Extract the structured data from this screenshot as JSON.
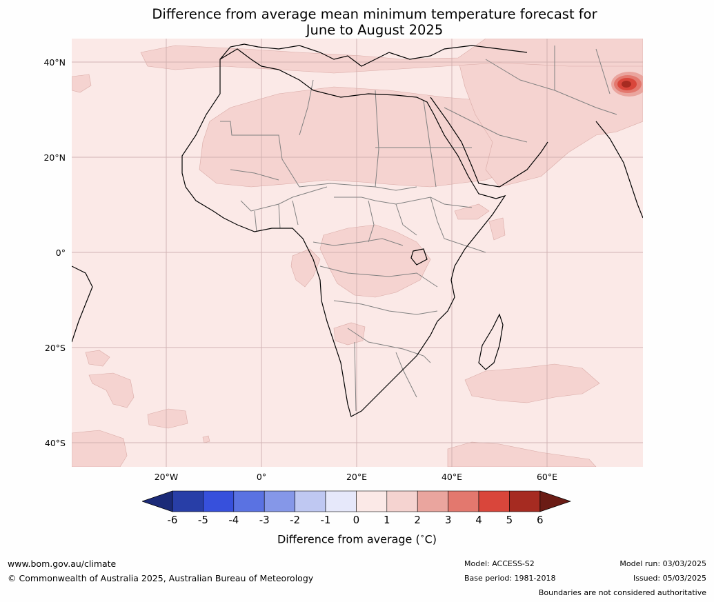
{
  "title": {
    "line1": "Difference from average mean minimum temperature forecast for",
    "line2": "June to August 2025"
  },
  "map": {
    "region": "Africa",
    "lat_labels": [
      "40°N",
      "20°N",
      "0°",
      "20°S",
      "40°S"
    ],
    "lon_labels": [
      "20°W",
      "0°",
      "20°E",
      "40°E",
      "60°E"
    ],
    "background_class": "0 to 1",
    "ocean_color": "#fbe9e7",
    "anomaly_1_2_color": "#f5d3d0",
    "hotspot_colors": [
      "#eaa59e",
      "#e3786e",
      "#d9463b",
      "#a62b21"
    ],
    "land_border_color": "#808080",
    "coastline_color": "#000000",
    "gridline_color": "#c9a8a8"
  },
  "colorbar": {
    "ticks": [
      "-6",
      "-5",
      "-4",
      "-3",
      "-2",
      "-1",
      "0",
      "1",
      "2",
      "3",
      "4",
      "5",
      "6"
    ],
    "colors": [
      "#1b2a78",
      "#283ea7",
      "#3750dc",
      "#5a72e2",
      "#8597e8",
      "#bfc8f2",
      "#e6e8fa",
      "#fbe9e7",
      "#f5d3d0",
      "#eaa59e",
      "#e3786e",
      "#d9463b",
      "#a62b21",
      "#6b1c15"
    ],
    "label": "Difference from average (",
    "label_unit": "∘",
    "label_end": "C)"
  },
  "footer": {
    "website": "www.bom.gov.au/climate",
    "copyright": "© Commonwealth of Australia 2025, Australian Bureau of Meteorology",
    "model": "Model: ACCESS-S2",
    "base_period": "Base period: 1981-2018",
    "model_run": "Model run: 03/03/2025",
    "issued": "Issued: 05/03/2025",
    "disclaimer": "Boundaries are not considered authoritative"
  }
}
